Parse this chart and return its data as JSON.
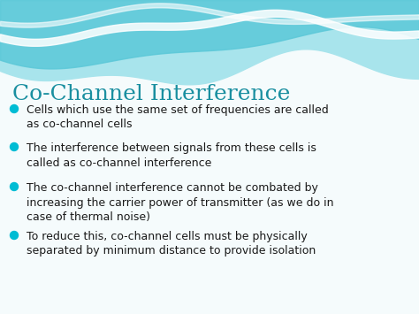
{
  "title": "Co-Channel Interference",
  "title_color": "#1a8fa0",
  "title_fontsize": 18,
  "bullet_color": "#00bcd4",
  "text_color": "#1a1a1a",
  "bullet_fontsize": 9.0,
  "background_color": "#f5fbfc",
  "bullets": [
    "Cells which use the same set of frequencies are called\nas co-channel cells",
    "The interference between signals from these cells is\ncalled as co-channel interference",
    "The co-channel interference cannot be combated by\nincreasing the carrier power of transmitter (as we do in\ncase of thermal noise)",
    "To reduce this, co-channel cells must be physically\nseparated by minimum distance to provide isolation"
  ],
  "wave_teal_dark": "#5bc8d8",
  "wave_teal_light": "#a8e4ec",
  "wave_white": "#e8f8fb",
  "wave_top_bg": "#7dd8e5"
}
